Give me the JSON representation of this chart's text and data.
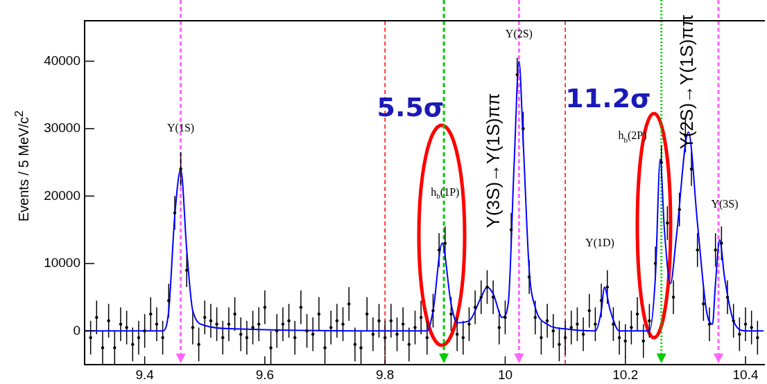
{
  "chart_data": {
    "type": "scatter",
    "ylabel": "Events / 5 MeV/c$^{2}$",
    "xlim": [
      9.3,
      10.43
    ],
    "xticks": [
      9.4,
      9.6,
      9.8,
      {
        "value": 10,
        "label": "10"
      },
      10.2,
      10.4
    ],
    "ylim": [
      -5000,
      46000
    ],
    "yticks": [
      0,
      10000,
      20000,
      30000,
      40000
    ],
    "grid": false,
    "legend": false,
    "series": [
      {
        "color": "#000000",
        "marker": "circle",
        "x": [
          9.31,
          9.32,
          9.33,
          9.34,
          9.35,
          9.36,
          9.37,
          9.38,
          9.39,
          9.4,
          9.41,
          9.42,
          9.43,
          9.44,
          9.45,
          9.46,
          9.47,
          9.48,
          9.49,
          9.5,
          9.51,
          9.52,
          9.53,
          9.54,
          9.55,
          9.56,
          9.57,
          9.58,
          9.59,
          9.6,
          9.61,
          9.62,
          9.63,
          9.64,
          9.65,
          9.66,
          9.67,
          9.68,
          9.69,
          9.7,
          9.71,
          9.72,
          9.73,
          9.74,
          9.75,
          9.76,
          9.77,
          9.78,
          9.79,
          9.8,
          9.81,
          9.82,
          9.83,
          9.84,
          9.85,
          9.86,
          9.87,
          9.88,
          9.89,
          9.9,
          9.91,
          9.92,
          9.93,
          9.94,
          9.95,
          9.96,
          9.97,
          9.98,
          9.99,
          10.0,
          10.01,
          10.02,
          10.03,
          10.04,
          10.05,
          10.06,
          10.07,
          10.08,
          10.09,
          10.1,
          10.11,
          10.12,
          10.13,
          10.14,
          10.15,
          10.16,
          10.17,
          10.18,
          10.19,
          10.2,
          10.21,
          10.22,
          10.23,
          10.24,
          10.25,
          10.26,
          10.27,
          10.28,
          10.29,
          10.3,
          10.31,
          10.32,
          10.33,
          10.34,
          10.35,
          10.36,
          10.37,
          10.38,
          10.39,
          10.4,
          10.41,
          10.42
        ],
        "values": [
          -1000,
          2000,
          -2500,
          1500,
          -2500,
          1000,
          500,
          -2000,
          -1000,
          0,
          2500,
          1000,
          -1000,
          4500,
          17500,
          24000,
          9000,
          500,
          -2000,
          2000,
          1500,
          1000,
          -1000,
          1000,
          2500,
          -500,
          -1000,
          500,
          1000,
          3500,
          -2500,
          0,
          1000,
          1500,
          -1000,
          3500,
          0,
          -500,
          2500,
          -2500,
          500,
          1500,
          1000,
          4000,
          -2000,
          -2500,
          2500,
          -500,
          1500,
          -1000,
          1500,
          -500,
          1000,
          -2000,
          500,
          2000,
          -1000,
          3000,
          12000,
          13000,
          2500,
          -500,
          -1000,
          1000,
          3500,
          5000,
          6500,
          5000,
          500,
          2000,
          15000,
          38000,
          30000,
          8000,
          2000,
          -1000,
          1500,
          0,
          -2000,
          -1000,
          500,
          1000,
          -500,
          3000,
          1000,
          4500,
          6500,
          1000,
          -1000,
          -1500,
          500,
          2500,
          -1500,
          1500,
          10000,
          25000,
          16000,
          5000,
          18000,
          29000,
          24000,
          12000,
          4000,
          1000,
          12000,
          13000,
          5000,
          1500,
          -500,
          1000,
          500,
          -1000
        ],
        "errors": [
          2500,
          2500,
          2500,
          2500,
          2500,
          2500,
          2500,
          2500,
          2500,
          2500,
          2500,
          2500,
          2500,
          2500,
          2500,
          2500,
          2500,
          2500,
          2500,
          2500,
          2500,
          2500,
          2500,
          2500,
          2500,
          2500,
          2500,
          2500,
          2500,
          2500,
          2500,
          2500,
          2500,
          2500,
          2500,
          2500,
          2500,
          2500,
          2500,
          2500,
          2500,
          2500,
          2500,
          2500,
          2500,
          2500,
          2500,
          2500,
          2500,
          2500,
          2500,
          2500,
          2500,
          2500,
          2500,
          2500,
          2500,
          2500,
          2500,
          2500,
          2500,
          2500,
          2500,
          2500,
          2500,
          2500,
          2500,
          2500,
          2500,
          2500,
          2500,
          2500,
          2500,
          2500,
          2500,
          2500,
          2500,
          2500,
          2500,
          2500,
          2500,
          2500,
          2500,
          2500,
          2500,
          2500,
          2500,
          2500,
          2500,
          2500,
          2500,
          2500,
          2500,
          2500,
          2500,
          2500,
          2500,
          2500,
          2500,
          2500,
          2500,
          2500,
          2500,
          2500,
          2500,
          2500,
          2500,
          2500,
          2500,
          2500,
          2500,
          2500
        ]
      },
      {
        "type": "line",
        "color": "#0000ff",
        "line_style": "solid",
        "x": [
          9.3,
          9.43,
          9.44,
          9.45,
          9.46,
          9.47,
          9.48,
          9.5,
          9.55,
          9.8,
          9.87,
          9.88,
          9.895,
          9.91,
          9.92,
          9.94,
          9.96,
          9.97,
          9.98,
          9.995,
          10.005,
          10.015,
          10.023,
          10.03,
          10.04,
          10.05,
          10.07,
          10.1,
          10.15,
          10.16,
          10.165,
          10.175,
          10.19,
          10.24,
          10.25,
          10.258,
          10.265,
          10.275,
          10.285,
          10.305,
          10.32,
          10.335,
          10.345,
          10.35,
          10.357,
          10.365,
          10.38,
          10.4,
          10.43
        ],
        "values": [
          0,
          0,
          3000,
          17000,
          24000,
          12000,
          3000,
          800,
          300,
          0,
          0,
          3000,
          13000,
          4000,
          1200,
          1500,
          5000,
          6500,
          5500,
          2000,
          4000,
          25000,
          40000,
          28000,
          9000,
          3500,
          1000,
          300,
          0,
          3000,
          6500,
          3000,
          0,
          0,
          8000,
          25500,
          15000,
          7000,
          14000,
          29500,
          16000,
          3000,
          1000,
          7000,
          13500,
          8000,
          1500,
          0,
          0
        ]
      }
    ],
    "ref_lines": [
      {
        "axis": "x",
        "value": 9.8,
        "color": "#ff0000",
        "line_style": "dashed"
      },
      {
        "axis": "x",
        "value": 10.1,
        "color": "#ff0000",
        "line_style": "dashed"
      },
      {
        "axis": "x",
        "value": 9.46,
        "color": "#ff66ff",
        "line_style": "dashed"
      },
      {
        "axis": "x",
        "value": 10.023,
        "color": "#ff66ff",
        "line_style": "dashed"
      },
      {
        "axis": "x",
        "value": 10.355,
        "color": "#ff66ff",
        "line_style": "dashed"
      },
      {
        "axis": "x",
        "value": 9.898,
        "color": "#00cc00",
        "line_style": "dashed"
      },
      {
        "axis": "x",
        "value": 10.26,
        "color": "#00cc00",
        "line_style": "dotted"
      }
    ],
    "annotations": [
      {
        "text": "Υ(1S)",
        "x": 9.46,
        "y": 30000
      },
      {
        "text": "Υ(2S)",
        "x": 10.023,
        "y": 44000
      },
      {
        "text": "h$_{b}$(1P)",
        "x": 9.9,
        "y": 20500
      },
      "Υ(1D)",
      "h$_{b}$(2P)",
      "Υ(3S)",
      "5.5σ",
      "11.2σ",
      "Υ(3S)→Υ(1S)ππ",
      "Υ(2S)→Υ(1S)ππ"
    ]
  }
}
